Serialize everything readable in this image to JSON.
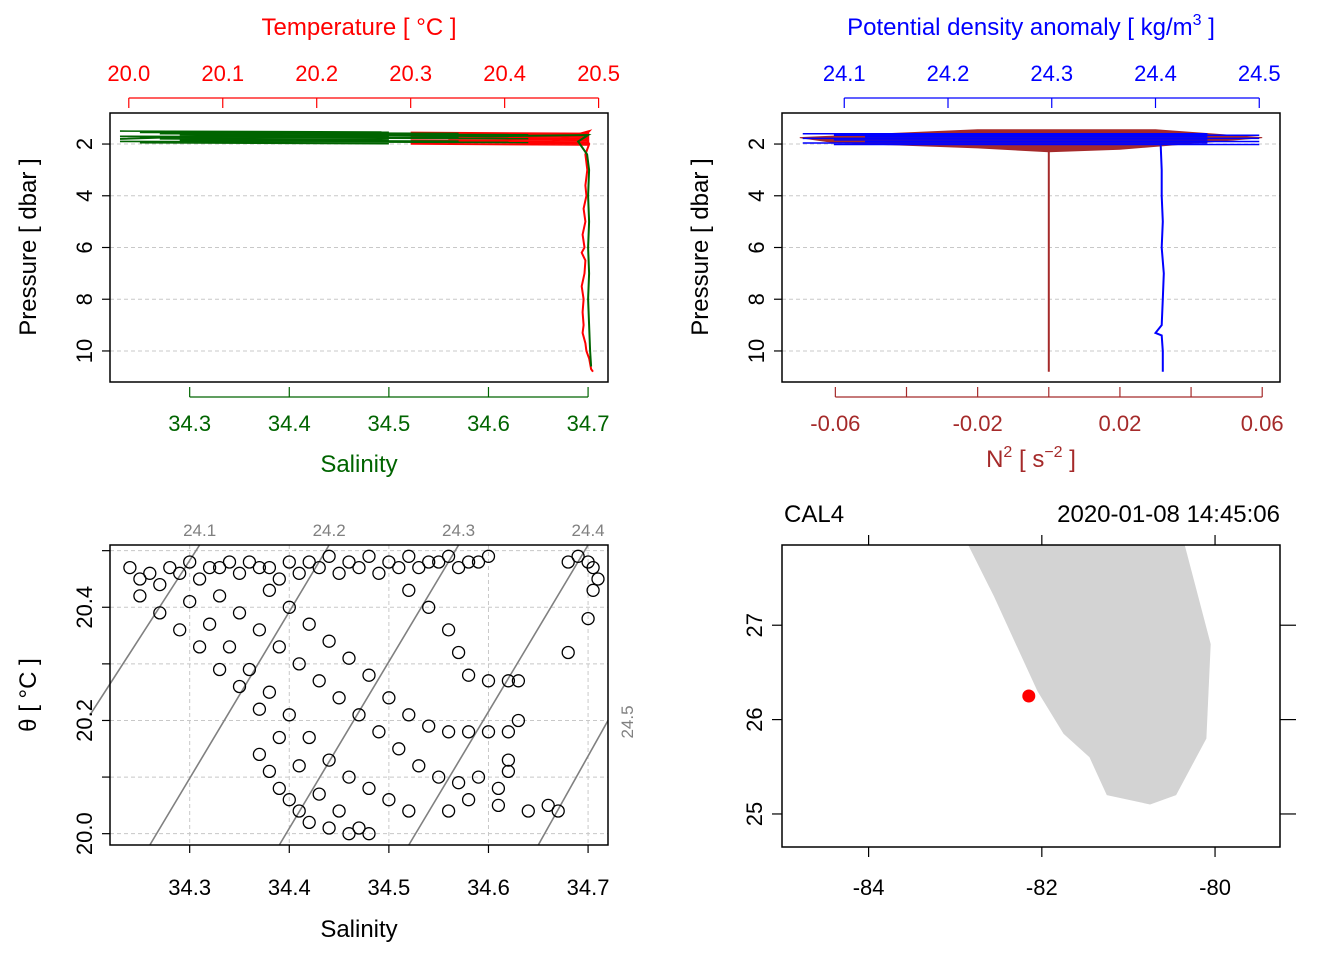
{
  "colors": {
    "temperature": "#ff0000",
    "salinity": "#006400",
    "density": "#0000ff",
    "n2": "#a52a2a",
    "isopycnal": "#808080",
    "land": "#d3d3d3",
    "station": "#ff0000"
  },
  "chart_data": [
    {
      "type": "line",
      "name": "T-S profile",
      "title_top": "Temperature [ °C ]",
      "title_bottom": "Salinity",
      "ylabel": "Pressure [ dbar ]",
      "ylim": [
        11.2,
        0.8
      ],
      "y_ticks": [
        "2",
        "4",
        "6",
        "8",
        "10"
      ],
      "top_axis": {
        "label": "Temperature [ °C ]",
        "range": [
          19.98,
          20.51
        ],
        "ticks": [
          "20.0",
          "20.1",
          "20.2",
          "20.3",
          "20.4",
          "20.5"
        ]
      },
      "bottom_axis": {
        "label": "Salinity",
        "range": [
          34.22,
          34.72
        ],
        "ticks": [
          "34.3",
          "34.4",
          "34.5",
          "34.6",
          "34.7"
        ]
      },
      "grid": true,
      "series": [
        {
          "color_key": "temperature",
          "points": [
            [
              20.3,
              1.95
            ],
            [
              20.45,
              1.9
            ],
            [
              20.49,
              1.5
            ],
            [
              20.485,
              1.7
            ],
            [
              20.49,
              2.0
            ],
            [
              20.486,
              2.4
            ],
            [
              20.488,
              3
            ],
            [
              20.486,
              3.6
            ],
            [
              20.487,
              4
            ],
            [
              20.484,
              4.5
            ],
            [
              20.486,
              5
            ],
            [
              20.483,
              5.5
            ],
            [
              20.485,
              6
            ],
            [
              20.482,
              6.2
            ],
            [
              20.486,
              6.5
            ],
            [
              20.485,
              7
            ],
            [
              20.482,
              7.5
            ],
            [
              20.484,
              8
            ],
            [
              20.483,
              8.5
            ],
            [
              20.484,
              9
            ],
            [
              20.483,
              9.3
            ],
            [
              20.486,
              9.7
            ],
            [
              20.487,
              10
            ],
            [
              20.49,
              10.3
            ],
            [
              20.492,
              10.7
            ],
            [
              20.494,
              10.8
            ]
          ]
        },
        {
          "color_key": "salinity",
          "points": [
            [
              34.23,
              1.8
            ],
            [
              34.4,
              1.6
            ],
            [
              34.6,
              1.7
            ],
            [
              34.7,
              1.65
            ],
            [
              34.69,
              1.9
            ],
            [
              34.699,
              2.4
            ],
            [
              34.701,
              3
            ],
            [
              34.7,
              4
            ],
            [
              34.701,
              5
            ],
            [
              34.7,
              6
            ],
            [
              34.701,
              7
            ],
            [
              34.7,
              8
            ],
            [
              34.701,
              9
            ],
            [
              34.702,
              10
            ],
            [
              34.703,
              10.6
            ]
          ]
        }
      ]
    },
    {
      "type": "line",
      "name": "Density and N2 profile",
      "title_top": "Potential density anomaly [ kg/m",
      "title_top_sup": "3",
      "title_top_end": " ]",
      "xlabel_bottom": "N",
      "xlabel_bottom_sup": "2",
      "xlabel_bottom_unit": " [ s",
      "xlabel_bottom_unit_sup": "−2",
      "xlabel_bottom_end": " ]",
      "ylabel": "Pressure [ dbar ]",
      "ylim": [
        11.2,
        0.8
      ],
      "y_ticks": [
        "2",
        "4",
        "6",
        "8",
        "10"
      ],
      "top_axis": {
        "range": [
          24.04,
          24.52
        ],
        "ticks": [
          "24.1",
          "24.2",
          "24.3",
          "24.4",
          "24.5"
        ]
      },
      "bottom_axis": {
        "range": [
          -0.075,
          0.065
        ],
        "ticks": [
          "-0.06",
          "-0.02",
          "0.02",
          "0.06"
        ],
        "minor": [
          -0.04,
          0.0,
          0.04
        ]
      },
      "grid": true,
      "series": [
        {
          "color_key": "density",
          "points": [
            [
              24.06,
              1.8
            ],
            [
              24.2,
              1.85
            ],
            [
              24.4,
              1.6
            ],
            [
              24.5,
              1.8
            ],
            [
              24.405,
              2.05
            ],
            [
              24.406,
              3
            ],
            [
              24.406,
              4
            ],
            [
              24.407,
              5
            ],
            [
              24.406,
              6
            ],
            [
              24.408,
              7
            ],
            [
              24.407,
              8
            ],
            [
              24.406,
              9
            ],
            [
              24.4,
              9.3
            ],
            [
              24.406,
              9.4
            ],
            [
              24.407,
              10
            ],
            [
              24.407,
              10.8
            ]
          ]
        },
        {
          "color_key": "n2",
          "points": [
            [
              -0.07,
              1.8
            ],
            [
              0.05,
              1.6
            ],
            [
              0.0,
              2.0
            ],
            [
              0.0,
              2.3
            ],
            [
              0.0,
              3
            ],
            [
              0.0,
              4
            ],
            [
              0.0,
              5
            ],
            [
              0.0,
              6
            ],
            [
              0.0,
              7
            ],
            [
              0.0,
              8
            ],
            [
              0.0,
              9
            ],
            [
              0.0,
              10
            ],
            [
              0.0,
              10.8
            ]
          ]
        }
      ]
    },
    {
      "type": "scatter",
      "name": "T-S diagram",
      "xlabel": "Salinity",
      "ylabel": "θ [ °C ]",
      "xlim": [
        34.22,
        34.72
      ],
      "ylim": [
        19.98,
        20.51
      ],
      "x_ticks": [
        "34.3",
        "34.4",
        "34.5",
        "34.6",
        "34.7"
      ],
      "y_ticks": [
        "20.0",
        "20.2",
        "20.4"
      ],
      "isopycnals": [
        {
          "label": "24.1",
          "s0": 34.2,
          "t0": 20.21,
          "s1": 34.31,
          "t1": 20.51
        },
        {
          "label": "24.2",
          "s0": 34.26,
          "t0": 19.98,
          "s1": 34.44,
          "t1": 20.51
        },
        {
          "label": "24.3",
          "s0": 34.39,
          "t0": 19.98,
          "s1": 34.57,
          "t1": 20.51
        },
        {
          "label": "24.4",
          "s0": 34.52,
          "t0": 19.98,
          "s1": 34.7,
          "t1": 20.51
        },
        {
          "label": "24.5",
          "s0": 34.65,
          "t0": 19.98,
          "s1": 34.72,
          "t1": 20.2
        }
      ],
      "points": [
        [
          34.24,
          20.47
        ],
        [
          34.26,
          20.46
        ],
        [
          34.28,
          20.47
        ],
        [
          34.3,
          20.48
        ],
        [
          34.32,
          20.47
        ],
        [
          34.34,
          20.48
        ],
        [
          34.36,
          20.48
        ],
        [
          34.38,
          20.47
        ],
        [
          34.4,
          20.48
        ],
        [
          34.42,
          20.48
        ],
        [
          34.44,
          20.49
        ],
        [
          34.46,
          20.48
        ],
        [
          34.48,
          20.49
        ],
        [
          34.5,
          20.48
        ],
        [
          34.52,
          20.49
        ],
        [
          34.54,
          20.48
        ],
        [
          34.56,
          20.49
        ],
        [
          34.58,
          20.48
        ],
        [
          34.6,
          20.49
        ],
        [
          34.25,
          20.45
        ],
        [
          34.27,
          20.44
        ],
        [
          34.29,
          20.46
        ],
        [
          34.31,
          20.45
        ],
        [
          34.33,
          20.47
        ],
        [
          34.35,
          20.46
        ],
        [
          34.37,
          20.47
        ],
        [
          34.39,
          20.45
        ],
        [
          34.41,
          20.46
        ],
        [
          34.43,
          20.47
        ],
        [
          34.45,
          20.46
        ],
        [
          34.47,
          20.47
        ],
        [
          34.49,
          20.46
        ],
        [
          34.51,
          20.47
        ],
        [
          34.53,
          20.47
        ],
        [
          34.55,
          20.48
        ],
        [
          34.57,
          20.47
        ],
        [
          34.59,
          20.48
        ],
        [
          34.68,
          20.48
        ],
        [
          34.69,
          20.49
        ],
        [
          34.7,
          20.48
        ],
        [
          34.705,
          20.47
        ],
        [
          34.71,
          20.45
        ],
        [
          34.705,
          20.43
        ],
        [
          34.7,
          20.38
        ],
        [
          34.68,
          20.32
        ],
        [
          34.25,
          20.42
        ],
        [
          34.27,
          20.39
        ],
        [
          34.29,
          20.36
        ],
        [
          34.31,
          20.33
        ],
        [
          34.33,
          20.29
        ],
        [
          34.35,
          20.26
        ],
        [
          34.37,
          20.22
        ],
        [
          34.39,
          20.17
        ],
        [
          34.41,
          20.12
        ],
        [
          34.43,
          20.07
        ],
        [
          34.45,
          20.04
        ],
        [
          34.47,
          20.01
        ],
        [
          34.3,
          20.41
        ],
        [
          34.32,
          20.37
        ],
        [
          34.34,
          20.33
        ],
        [
          34.36,
          20.29
        ],
        [
          34.38,
          20.25
        ],
        [
          34.4,
          20.21
        ],
        [
          34.42,
          20.17
        ],
        [
          34.44,
          20.13
        ],
        [
          34.46,
          20.1
        ],
        [
          34.48,
          20.08
        ],
        [
          34.5,
          20.06
        ],
        [
          34.52,
          20.04
        ],
        [
          34.33,
          20.42
        ],
        [
          34.35,
          20.39
        ],
        [
          34.37,
          20.36
        ],
        [
          34.39,
          20.33
        ],
        [
          34.41,
          20.3
        ],
        [
          34.43,
          20.27
        ],
        [
          34.45,
          20.24
        ],
        [
          34.47,
          20.21
        ],
        [
          34.49,
          20.18
        ],
        [
          34.51,
          20.15
        ],
        [
          34.53,
          20.12
        ],
        [
          34.55,
          20.1
        ],
        [
          34.57,
          20.09
        ],
        [
          34.38,
          20.43
        ],
        [
          34.4,
          20.4
        ],
        [
          34.42,
          20.37
        ],
        [
          34.44,
          20.34
        ],
        [
          34.46,
          20.31
        ],
        [
          34.48,
          20.28
        ],
        [
          34.5,
          20.24
        ],
        [
          34.52,
          20.21
        ],
        [
          34.54,
          20.19
        ],
        [
          34.56,
          20.18
        ],
        [
          34.58,
          20.18
        ],
        [
          34.6,
          20.18
        ],
        [
          34.37,
          20.14
        ],
        [
          34.38,
          20.11
        ],
        [
          34.39,
          20.08
        ],
        [
          34.4,
          20.06
        ],
        [
          34.41,
          20.04
        ],
        [
          34.42,
          20.02
        ],
        [
          34.44,
          20.01
        ],
        [
          34.46,
          20.0
        ],
        [
          34.48,
          20.0
        ],
        [
          34.52,
          20.43
        ],
        [
          34.54,
          20.4
        ],
        [
          34.56,
          20.36
        ],
        [
          34.57,
          20.32
        ],
        [
          34.58,
          20.28
        ],
        [
          34.6,
          20.27
        ],
        [
          34.62,
          20.27
        ],
        [
          34.63,
          20.27
        ],
        [
          34.63,
          20.2
        ],
        [
          34.62,
          20.18
        ],
        [
          34.62,
          20.13
        ],
        [
          34.62,
          20.11
        ],
        [
          34.61,
          20.08
        ],
        [
          34.61,
          20.05
        ],
        [
          34.64,
          20.04
        ],
        [
          34.66,
          20.05
        ],
        [
          34.67,
          20.04
        ],
        [
          34.59,
          20.1
        ],
        [
          34.58,
          20.06
        ],
        [
          34.56,
          20.04
        ]
      ]
    }
  ],
  "map": {
    "station": "CAL4",
    "datetime": "2020-01-08 14:45:06",
    "lon_range": [
      -85.0,
      -79.25
    ],
    "lat_range": [
      24.65,
      27.85
    ],
    "x_ticks": [
      "-84",
      "-82",
      "-80"
    ],
    "y_ticks": [
      "25",
      "26",
      "27"
    ],
    "station_point": [
      -82.15,
      26.25
    ],
    "land": [
      [
        -82.85,
        27.85
      ],
      [
        -82.55,
        27.3
      ],
      [
        -82.3,
        26.8
      ],
      [
        -82.05,
        26.3
      ],
      [
        -81.75,
        25.85
      ],
      [
        -81.45,
        25.6
      ],
      [
        -81.25,
        25.2
      ],
      [
        -80.75,
        25.1
      ],
      [
        -80.45,
        25.2
      ],
      [
        -80.1,
        25.8
      ],
      [
        -80.05,
        26.8
      ],
      [
        -80.35,
        27.85
      ]
    ]
  }
}
